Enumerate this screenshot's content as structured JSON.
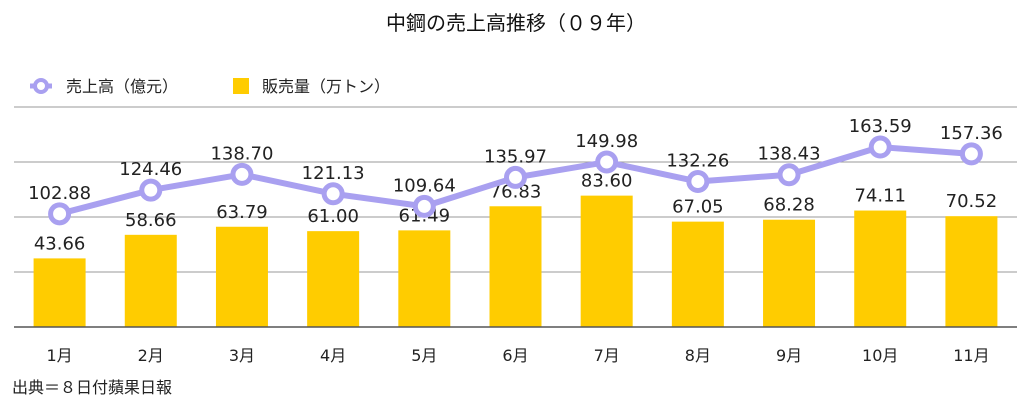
{
  "chart_data": {
    "type": "bar+line",
    "title": "中鋼の売上高推移（０９年）",
    "categories": [
      "1月",
      "2月",
      "3月",
      "4月",
      "5月",
      "6月",
      "7月",
      "8月",
      "9月",
      "10月",
      "11月"
    ],
    "series": [
      {
        "name": "売上高（億元）",
        "type": "line",
        "color": "#a9a0f0",
        "values": [
          102.88,
          124.46,
          138.7,
          121.13,
          109.64,
          135.97,
          149.98,
          132.26,
          138.43,
          163.59,
          157.36
        ],
        "labels": [
          "102.88",
          "124.46",
          "138.70",
          "121.13",
          "109.64",
          "135.97",
          "149.98",
          "132.26",
          "138.43",
          "163.59",
          "157.36"
        ]
      },
      {
        "name": "販売量（万トン）",
        "type": "bar",
        "color": "#ffcc00",
        "values": [
          43.66,
          58.66,
          63.79,
          61.0,
          61.49,
          76.83,
          83.6,
          67.05,
          68.28,
          74.11,
          70.52
        ],
        "labels": [
          "43.66",
          "58.66",
          "63.79",
          "61.00",
          "61.49",
          "76.83",
          "83.60",
          "67.05",
          "68.28",
          "74.11",
          "70.52"
        ]
      }
    ],
    "bar_ylim": [
      0,
      140
    ],
    "line_ylim": [
      0,
      200
    ],
    "grid": true,
    "legend_position": "top-left"
  },
  "source": "出典＝８日付蘋果日報"
}
